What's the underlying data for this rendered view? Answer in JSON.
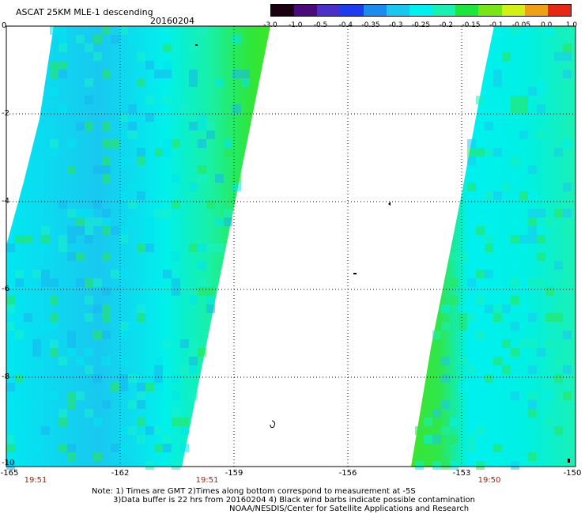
{
  "header": {
    "title": "ASCAT 25KM MLE-1 descending",
    "date": "20160204"
  },
  "colorbar": {
    "labels": [
      "-3.0",
      "-1.0",
      "-0.5",
      "-0.4",
      "-0.35",
      "-0.3",
      "-0.25",
      "-0.2",
      "-0.15",
      "-0.1",
      "-0.05",
      "0.0",
      "1.0"
    ],
    "colors": [
      "#1a0010",
      "#4a0a7a",
      "#4a30c8",
      "#1c3cf0",
      "#1a8cf0",
      "#19c8f0",
      "#00f0f0",
      "#19f0b4",
      "#1ce63c",
      "#78e614",
      "#d2f014",
      "#f0a014",
      "#e62814"
    ]
  },
  "axes": {
    "y_labels": [
      "0",
      "-2",
      "-4",
      "-6",
      "-8",
      "-10"
    ],
    "x_labels": [
      "-165",
      "-162",
      "-159",
      "-156",
      "-153",
      "-150"
    ],
    "time_labels": [
      "19:51",
      "19:51",
      "19:50"
    ]
  },
  "notes": {
    "line1": "Note: 1) Times are GMT 2)Times along bottom correspond to measurement at -5S",
    "line2": "3)Data buffer is 22 hrs from 20160204 4) Black wind barbs indicate possible contamination",
    "line3": "NOAA/NESDIS/Center for Satellite Applications and Research"
  }
}
